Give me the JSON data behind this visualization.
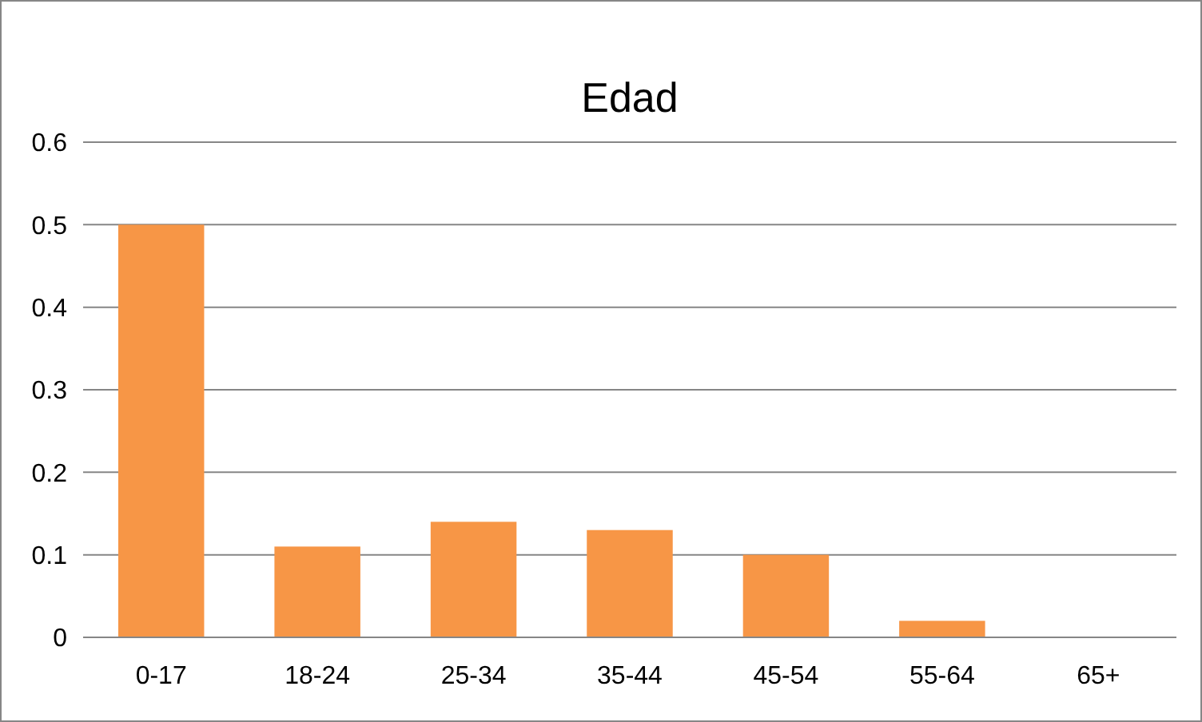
{
  "chart_data": {
    "type": "bar",
    "title": "Edad",
    "categories": [
      "0-17",
      "18-24",
      "25-34",
      "35-44",
      "45-54",
      "55-64",
      "65+"
    ],
    "values": [
      0.5,
      0.11,
      0.14,
      0.13,
      0.1,
      0.02,
      0
    ],
    "color": "#f79646",
    "ylim": [
      0,
      0.6
    ],
    "yticks": [
      0,
      0.1,
      0.2,
      0.3,
      0.4,
      0.5,
      0.6
    ],
    "grid": "y"
  }
}
